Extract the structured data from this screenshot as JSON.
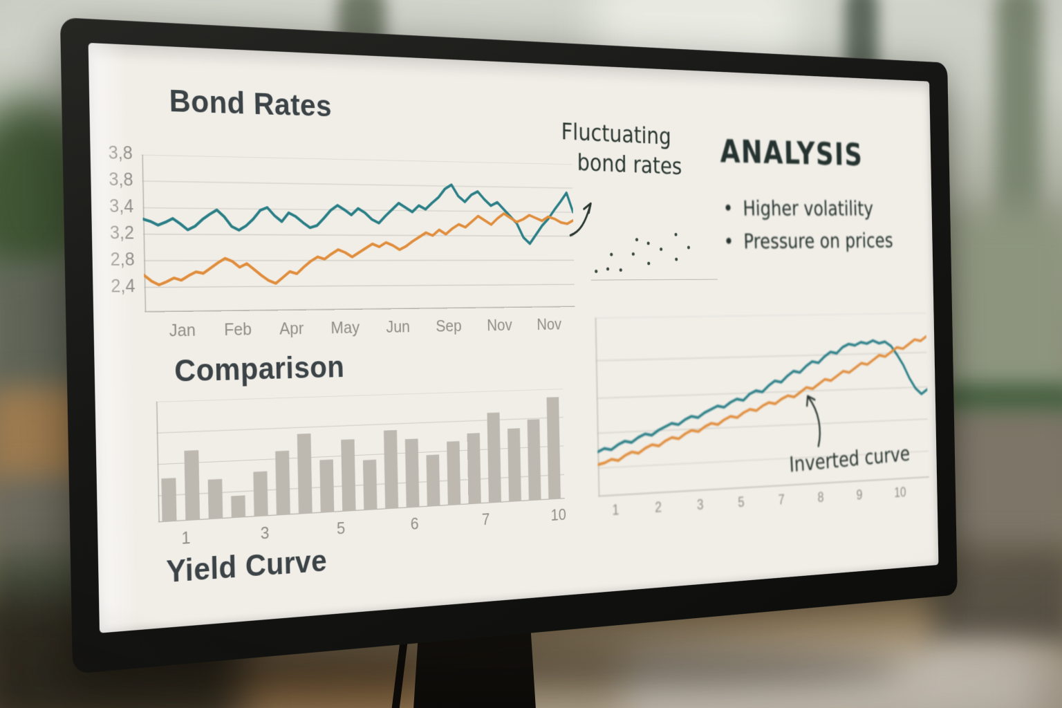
{
  "colors": {
    "teal": "#2a7f87",
    "orange": "#e08d3c",
    "bar": "#bdb8b0",
    "grid": "#cbc8c1",
    "axis": "#b3b0a8",
    "dot": "#3c4a43",
    "screen_bg": "#f1eee8",
    "title": "#3b4347",
    "tick": "#908e88",
    "handwriting": "#2b3731",
    "bezel": "#1b1b19"
  },
  "screen": {
    "annotation": {
      "line1": "Fluctuating",
      "line2": "bond rates"
    },
    "analysis": {
      "title": "ANALYSIS",
      "bullet_char": "•",
      "bullets": [
        "Higher volatility",
        "Pressure on prices"
      ]
    }
  },
  "chart_data": [
    {
      "id": "bond",
      "type": "line",
      "title": "Bond Rates",
      "annotation": "Fluctuating bond rates",
      "x_ticks": [
        "Jan",
        "Feb",
        "Apr",
        "May",
        "Jun",
        "Sep",
        "Nov",
        "Nov"
      ],
      "y_tick_labels": [
        "3,8",
        "3,8",
        "3,4",
        "3,2",
        "2,8",
        "2,4"
      ],
      "ylim": [
        2.07,
        4.15
      ],
      "grid_fracs": [
        0,
        16.8,
        33.7,
        50.5,
        67.3,
        84.2
      ],
      "axes": [
        "left",
        "bottom"
      ],
      "stroke": 4.2,
      "legend": "none",
      "series": [
        {
          "name": "bond-rate-teal",
          "color": "teal",
          "values": [
            3.3,
            3.27,
            3.22,
            3.26,
            3.31,
            3.24,
            3.16,
            3.21,
            3.3,
            3.37,
            3.43,
            3.34,
            3.21,
            3.16,
            3.22,
            3.31,
            3.43,
            3.47,
            3.36,
            3.28,
            3.4,
            3.35,
            3.27,
            3.2,
            3.23,
            3.33,
            3.44,
            3.51,
            3.45,
            3.38,
            3.47,
            3.41,
            3.32,
            3.27,
            3.37,
            3.46,
            3.55,
            3.49,
            3.43,
            3.52,
            3.47,
            3.56,
            3.64,
            3.76,
            3.82,
            3.66,
            3.58,
            3.68,
            3.73,
            3.62,
            3.53,
            3.58,
            3.48,
            3.38,
            3.28,
            3.08,
            2.99,
            3.12,
            3.25,
            3.35,
            3.48,
            3.6,
            3.73,
            3.45
          ]
        },
        {
          "name": "bond-rate-orange",
          "color": "orange",
          "values": [
            2.56,
            2.48,
            2.43,
            2.47,
            2.52,
            2.49,
            2.55,
            2.6,
            2.58,
            2.65,
            2.72,
            2.78,
            2.74,
            2.66,
            2.71,
            2.63,
            2.55,
            2.48,
            2.44,
            2.52,
            2.6,
            2.57,
            2.66,
            2.74,
            2.8,
            2.77,
            2.84,
            2.9,
            2.86,
            2.8,
            2.86,
            2.92,
            2.98,
            2.94,
            3.0,
            2.96,
            2.9,
            2.95,
            3.02,
            3.08,
            3.14,
            3.1,
            3.18,
            3.12,
            3.2,
            3.26,
            3.22,
            3.3,
            3.38,
            3.32,
            3.26,
            3.35,
            3.42,
            3.36,
            3.3,
            3.34,
            3.4,
            3.36,
            3.32,
            3.38,
            3.35,
            3.3,
            3.28,
            3.33
          ]
        }
      ]
    },
    {
      "id": "scatter",
      "type": "scatter",
      "xlim": [
        0,
        10
      ],
      "ylim": [
        0,
        10
      ],
      "axes": [
        "bottom"
      ],
      "points": [
        [
          0.4,
          1.5
        ],
        [
          1.3,
          1.9
        ],
        [
          2.3,
          1.7
        ],
        [
          1.6,
          4.3
        ],
        [
          3.3,
          4.4
        ],
        [
          3.6,
          6.8
        ],
        [
          4.5,
          6.2
        ],
        [
          4.5,
          2.8
        ],
        [
          5.5,
          5.2
        ],
        [
          6.7,
          7.7
        ],
        [
          6.7,
          3.5
        ],
        [
          7.7,
          5.5
        ]
      ]
    },
    {
      "id": "comparison",
      "type": "bar",
      "title": "Comparison",
      "x_ticks": [
        "1",
        "3",
        "5",
        "6",
        "7",
        "10"
      ],
      "ylim": [
        0,
        10.8
      ],
      "grid_fracs": [
        0,
        26,
        52,
        78
      ],
      "axes": [
        "left",
        "bottom"
      ],
      "values": [
        3.9,
        6.3,
        3.6,
        2.0,
        4.1,
        5.9,
        7.4,
        4.9,
        6.7,
        4.7,
        7.4,
        6.5,
        4.9,
        6.1,
        6.8,
        8.7,
        7.1,
        7.9,
        10.0
      ]
    },
    {
      "id": "yield",
      "type": "line",
      "title": "Yield Curve",
      "annotation": "Inverted curve",
      "x_ticks": [
        "1",
        "2",
        "3",
        "5",
        "7",
        "8",
        "9",
        "10"
      ],
      "ylim": [
        0,
        1.12
      ],
      "grid_fracs": [
        0,
        24,
        45,
        64.5,
        84
      ],
      "axes": [
        "left",
        "bottom"
      ],
      "stroke": 4.4,
      "legend": "none",
      "series": [
        {
          "name": "yield-teal",
          "color": "teal",
          "values": [
            0.28,
            0.3,
            0.29,
            0.32,
            0.34,
            0.33,
            0.36,
            0.38,
            0.37,
            0.4,
            0.42,
            0.44,
            0.43,
            0.46,
            0.48,
            0.47,
            0.5,
            0.52,
            0.54,
            0.53,
            0.56,
            0.58,
            0.57,
            0.61,
            0.63,
            0.62,
            0.66,
            0.69,
            0.68,
            0.72,
            0.75,
            0.74,
            0.78,
            0.81,
            0.8,
            0.84,
            0.87,
            0.86,
            0.9,
            0.92,
            0.91,
            0.93,
            0.92,
            0.94,
            0.92,
            0.93,
            0.9,
            0.84,
            0.77,
            0.68,
            0.61,
            0.57,
            0.6
          ]
        },
        {
          "name": "yield-orange",
          "color": "orange",
          "values": [
            0.2,
            0.21,
            0.23,
            0.22,
            0.25,
            0.27,
            0.26,
            0.29,
            0.31,
            0.3,
            0.33,
            0.35,
            0.34,
            0.37,
            0.39,
            0.38,
            0.41,
            0.43,
            0.42,
            0.45,
            0.47,
            0.46,
            0.49,
            0.51,
            0.5,
            0.53,
            0.55,
            0.54,
            0.57,
            0.59,
            0.58,
            0.61,
            0.64,
            0.63,
            0.66,
            0.69,
            0.68,
            0.71,
            0.74,
            0.73,
            0.76,
            0.79,
            0.78,
            0.81,
            0.84,
            0.83,
            0.86,
            0.89,
            0.88,
            0.91,
            0.94,
            0.93,
            0.96
          ]
        }
      ]
    }
  ]
}
